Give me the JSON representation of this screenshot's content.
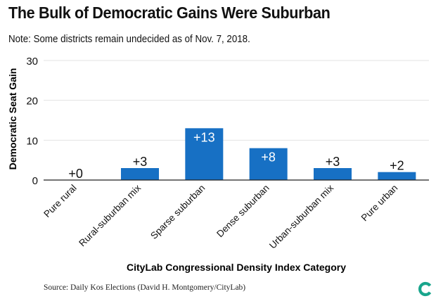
{
  "header": {
    "title": "The Bulk of Democratic Gains Were Suburban",
    "subtitle": "Note: Some districts remain undecided as of Nov. 7, 2018."
  },
  "footer": {
    "source": "Source: Daily Kos Elections (David H. Montgomery/CityLab)",
    "logo_icon": "citylab-logo-icon"
  },
  "colors": {
    "bar": "#1770c4",
    "grid": "#e3e3e3",
    "logo": "#19a58c"
  },
  "chart_data": {
    "type": "bar",
    "title": "The Bulk of Democratic Gains Were Suburban",
    "xlabel": "CityLab Congressional Density Index Category",
    "ylabel": "Democratic Seat Gain",
    "categories": [
      "Pure rural",
      "Rural-suburban mix",
      "Sparse suburban",
      "Dense suburban",
      "Urban-suburban mix",
      "Pure urban"
    ],
    "values": [
      0,
      3,
      13,
      8,
      3,
      2
    ],
    "data_labels": [
      "+0",
      "+3",
      "+13",
      "+8",
      "+3",
      "+2"
    ],
    "yticks": [
      0,
      10,
      20,
      30
    ],
    "ylim": [
      0,
      30
    ],
    "grid": true,
    "legend": "none"
  }
}
